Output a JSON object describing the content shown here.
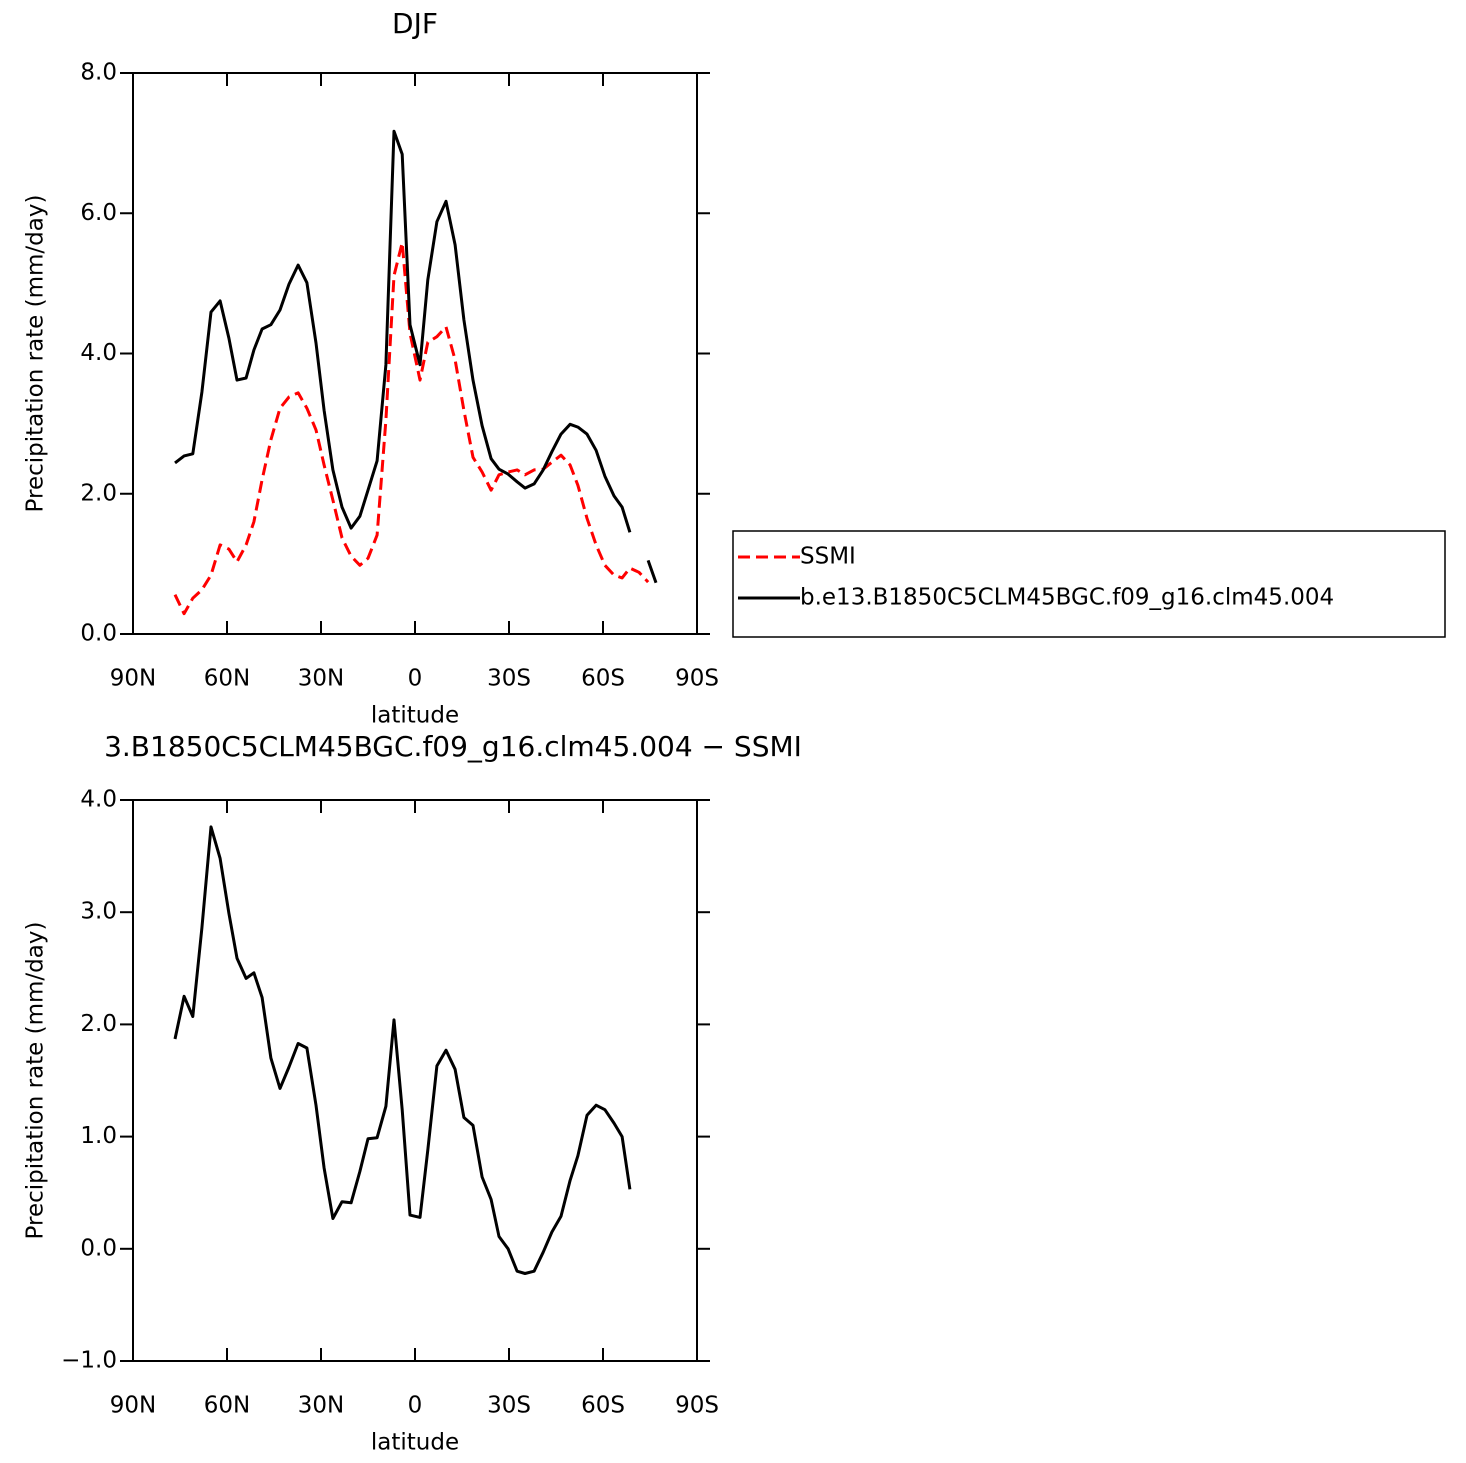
{
  "chart_data": [
    {
      "type": "line",
      "title": "DJF",
      "xlabel": "latitude",
      "ylabel": "Precipitation rate (mm/day)",
      "x": [
        76.6,
        73.7,
        70.9,
        68.0,
        65.1,
        62.2,
        59.4,
        56.8,
        53.9,
        51.4,
        48.8,
        46.0,
        43.1,
        40.2,
        37.3,
        34.5,
        31.6,
        29.0,
        26.2,
        23.3,
        20.4,
        17.6,
        15.0,
        12.1,
        9.3,
        6.7,
        4.1,
        1.6,
        -1.6,
        -4.1,
        -7.0,
        -9.9,
        -12.8,
        -15.6,
        -18.5,
        -21.4,
        -24.3,
        -26.8,
        -29.7,
        -32.6,
        -35.1,
        -38.0,
        -40.9,
        -43.7,
        -46.6,
        -49.5,
        -52.0,
        -54.9,
        -57.8,
        -60.6,
        -63.5,
        -66.1,
        -68.6,
        -71.5,
        -74.4,
        -76.9
      ],
      "series": [
        {
          "name": "SSMI",
          "color": "#ff0000",
          "dash": "dashed",
          "values": [
            0.56,
            0.29,
            0.51,
            0.63,
            0.84,
            1.27,
            1.21,
            1.03,
            1.27,
            1.6,
            2.2,
            2.77,
            3.22,
            3.38,
            3.44,
            3.22,
            2.91,
            2.41,
            1.91,
            1.37,
            1.11,
            0.98,
            1.08,
            1.41,
            3.05,
            5.11,
            5.58,
            4.29,
            3.62,
            4.16,
            4.24,
            4.38,
            3.91,
            3.19,
            2.52,
            2.31,
            2.05,
            2.27,
            2.31,
            2.34,
            2.27,
            2.34,
            2.35,
            2.45,
            2.55,
            2.41,
            2.12,
            1.65,
            1.27,
            0.98,
            0.84,
            0.8,
            0.94,
            0.88,
            0.74,
            null
          ]
        },
        {
          "name": "b.e13.B1850C5CLM45BGC.f09_g16.clm45.004",
          "color": "#000000",
          "dash": "solid",
          "values": [
            2.44,
            2.54,
            2.57,
            3.45,
            4.59,
            4.75,
            4.22,
            3.62,
            3.65,
            4.05,
            4.35,
            4.41,
            4.62,
            4.99,
            5.26,
            5.01,
            4.15,
            3.19,
            2.34,
            1.81,
            1.51,
            1.68,
            2.05,
            2.47,
            3.84,
            7.17,
            6.84,
            4.41,
            3.84,
            5.05,
            5.88,
            6.17,
            5.55,
            4.48,
            3.62,
            2.97,
            2.5,
            2.35,
            2.28,
            2.17,
            2.08,
            2.14,
            2.34,
            2.6,
            2.85,
            2.99,
            2.95,
            2.85,
            2.62,
            2.25,
            1.97,
            1.81,
            1.45,
            null,
            1.05,
            0.73
          ]
        }
      ],
      "xlim": [
        90,
        -90
      ],
      "xticks": [
        {
          "value": 90,
          "label": "90N"
        },
        {
          "value": 60,
          "label": "60N"
        },
        {
          "value": 30,
          "label": "30N"
        },
        0,
        {
          "value": -30,
          "label": "30S"
        },
        {
          "value": -60,
          "label": "60S"
        },
        {
          "value": -90,
          "label": "90S"
        }
      ],
      "ylim": [
        0,
        8
      ],
      "yticks": [
        {
          "value": 0,
          "label": "0.0"
        },
        {
          "value": 2,
          "label": "2.0"
        },
        {
          "value": 4,
          "label": "4.0"
        },
        {
          "value": 6,
          "label": "6.0"
        },
        {
          "value": 8,
          "label": "8.0"
        }
      ],
      "grid": false,
      "legend": "right"
    },
    {
      "type": "line",
      "title": "3.B1850C5CLM45BGC.f09_g16.clm45.004 − SSMI",
      "xlabel": "latitude",
      "ylabel": "Precipitation rate (mm/day)",
      "x": [
        76.6,
        73.7,
        70.9,
        68.0,
        65.1,
        62.2,
        59.4,
        56.8,
        53.9,
        51.4,
        48.8,
        46.0,
        43.1,
        40.2,
        37.3,
        34.5,
        31.6,
        29.0,
        26.2,
        23.3,
        20.4,
        17.6,
        15.0,
        12.1,
        9.3,
        6.7,
        4.1,
        1.6,
        -1.6,
        -4.1,
        -7.0,
        -9.9,
        -12.8,
        -15.6,
        -18.5,
        -21.4,
        -24.3,
        -26.8,
        -29.7,
        -32.6,
        -35.1,
        -38.0,
        -40.9,
        -43.7,
        -46.6,
        -49.5,
        -52.0,
        -54.9,
        -57.8,
        -60.6,
        -63.5,
        -66.1,
        -68.6
      ],
      "series": [
        {
          "color": "#000000",
          "dash": "solid",
          "values": [
            1.87,
            2.25,
            2.07,
            2.86,
            3.76,
            3.48,
            2.99,
            2.59,
            2.41,
            2.46,
            2.24,
            1.7,
            1.43,
            1.62,
            1.83,
            1.79,
            1.28,
            0.72,
            0.27,
            0.42,
            0.41,
            0.69,
            0.98,
            0.99,
            1.27,
            2.04,
            1.24,
            0.3,
            0.28,
            0.88,
            1.63,
            1.77,
            1.6,
            1.17,
            1.1,
            0.64,
            0.44,
            0.11,
            0.0,
            -0.2,
            -0.22,
            -0.2,
            -0.03,
            0.15,
            0.29,
            0.61,
            0.83,
            1.19,
            1.28,
            1.24,
            1.12,
            1.0,
            0.53
          ]
        }
      ],
      "xlim": [
        90,
        -90
      ],
      "xticks": [
        {
          "value": 90,
          "label": "90N"
        },
        {
          "value": 60,
          "label": "60N"
        },
        {
          "value": 30,
          "label": "30N"
        },
        0,
        {
          "value": -30,
          "label": "30S"
        },
        {
          "value": -60,
          "label": "60S"
        },
        {
          "value": -90,
          "label": "90S"
        }
      ],
      "ylim": [
        -1,
        4
      ],
      "yticks": [
        {
          "value": -1,
          "label": "−1.0"
        },
        {
          "value": 0,
          "label": "0.0"
        },
        {
          "value": 1,
          "label": "1.0"
        },
        {
          "value": 2,
          "label": "2.0"
        },
        {
          "value": 3,
          "label": "3.0"
        },
        {
          "value": 4,
          "label": "4.0"
        }
      ],
      "grid": false
    }
  ]
}
